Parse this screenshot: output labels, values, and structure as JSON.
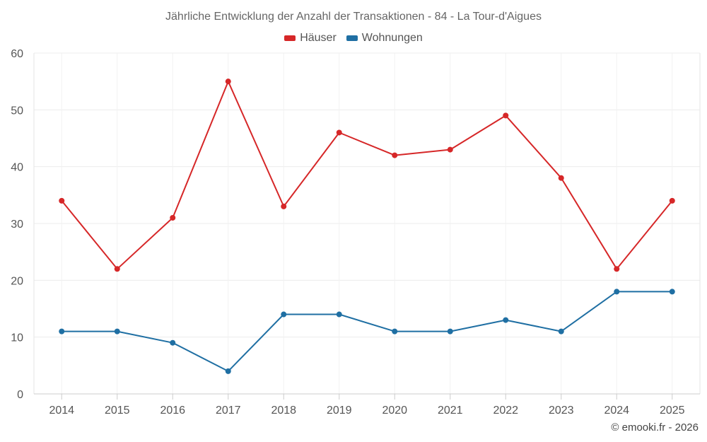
{
  "chart_data": {
    "type": "line",
    "title": "Jährliche Entwicklung der Anzahl der Transaktionen - 84 - La Tour-d'Aigues",
    "categories": [
      "2014",
      "2015",
      "2016",
      "2017",
      "2018",
      "2019",
      "2020",
      "2021",
      "2022",
      "2023",
      "2024",
      "2025"
    ],
    "series": [
      {
        "name": "Häuser",
        "color": "#d62728",
        "values": [
          34,
          22,
          31,
          55,
          33,
          46,
          42,
          43,
          49,
          38,
          22,
          34
        ]
      },
      {
        "name": "Wohnungen",
        "color": "#1f6fa3",
        "values": [
          11,
          11,
          9,
          4,
          14,
          14,
          11,
          11,
          13,
          11,
          18,
          18
        ]
      }
    ],
    "ylim": [
      0,
      60
    ],
    "yticks": [
      0,
      10,
      20,
      30,
      40,
      50,
      60
    ],
    "xlabel": "",
    "ylabel": "",
    "legend": "top-center",
    "grid": true
  },
  "credit": "© emooki.fr - 2026"
}
